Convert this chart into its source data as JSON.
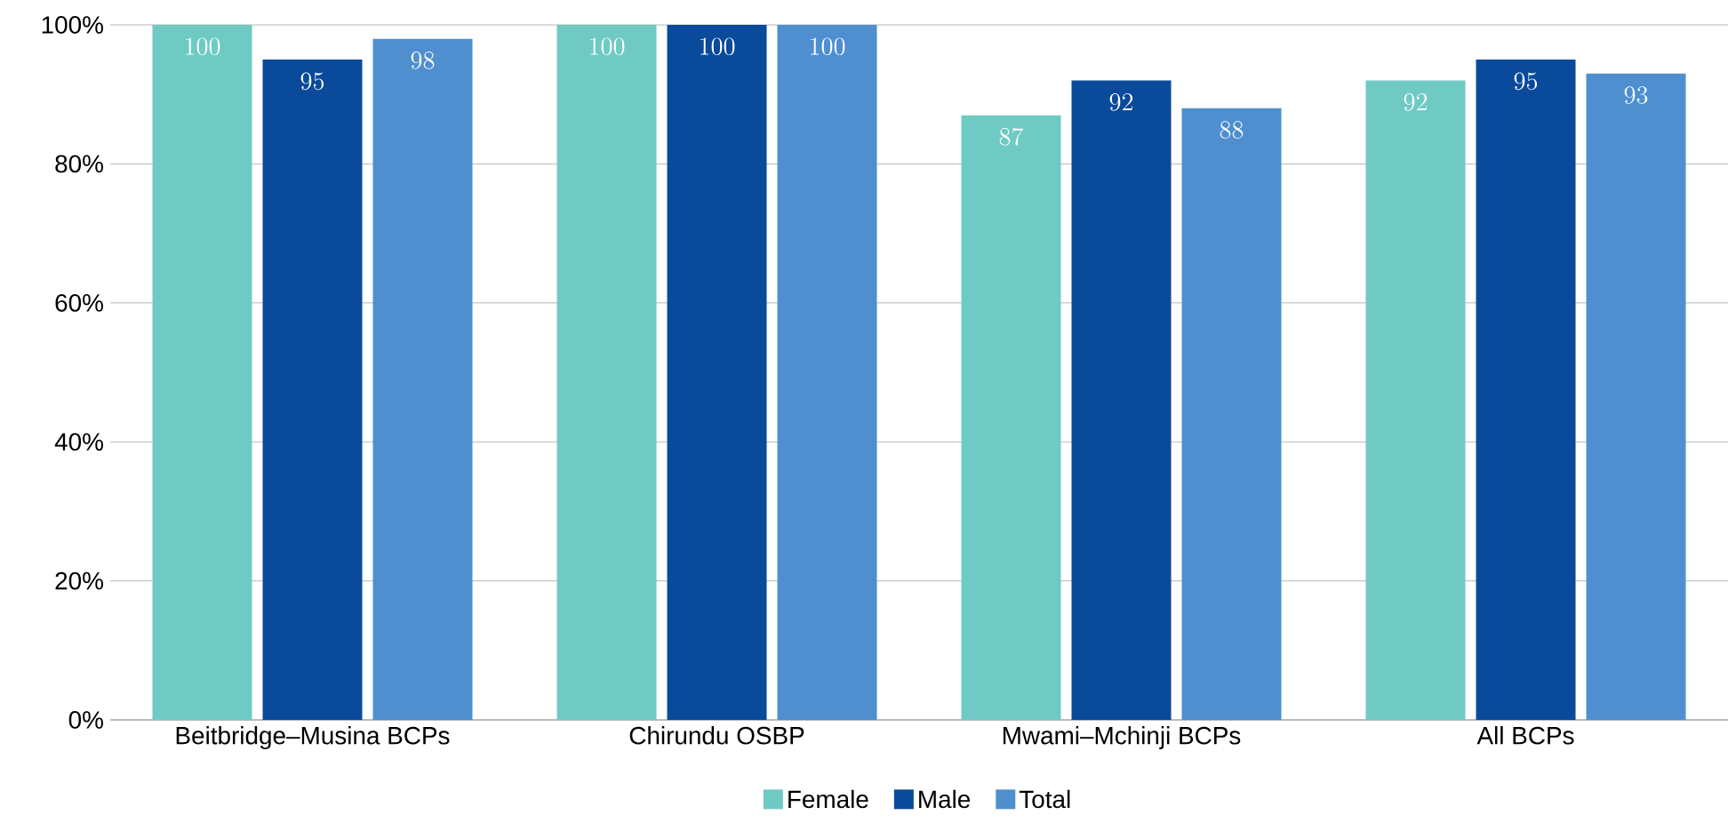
{
  "chart_data": {
    "type": "bar",
    "categories": [
      "Beitbridge–Musina BCPs",
      "Chirundu OSBP",
      "Mwami–Mchinji BCPs",
      "All BCPs"
    ],
    "series": [
      {
        "name": "Female",
        "color": "#6fcac4",
        "values": [
          100,
          100,
          87,
          92
        ]
      },
      {
        "name": "Male",
        "color": "#0a4a9a",
        "values": [
          95,
          100,
          92,
          95
        ]
      },
      {
        "name": "Total",
        "color": "#4f8fcf",
        "values": [
          98,
          100,
          88,
          93
        ]
      }
    ],
    "ylim": [
      0,
      100
    ],
    "yticks": [
      {
        "value": 0,
        "label": "0%"
      },
      {
        "value": 20,
        "label": "20%"
      },
      {
        "value": 40,
        "label": "40%"
      },
      {
        "value": 60,
        "label": "60%"
      },
      {
        "value": 80,
        "label": "80%"
      },
      {
        "value": 100,
        "label": "100%"
      }
    ],
    "grid": "y",
    "legend": "bottom",
    "data_labels": true
  }
}
